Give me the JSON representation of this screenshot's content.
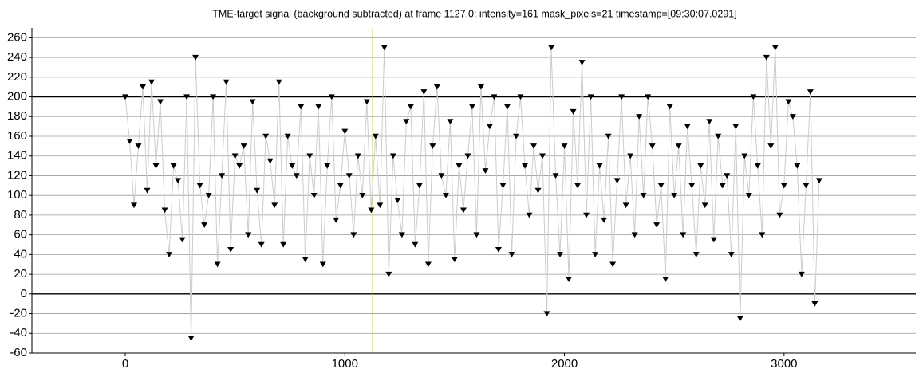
{
  "chart_data": {
    "type": "line",
    "title": "TME-target signal (background subtracted) at frame 1127.0: intensity=161 mask_pixels=21 timestamp=[09:30:07.0291]",
    "x": [
      0,
      20,
      40,
      60,
      80,
      100,
      120,
      140,
      160,
      180,
      200,
      220,
      240,
      260,
      280,
      300,
      320,
      340,
      360,
      380,
      400,
      420,
      440,
      460,
      480,
      500,
      520,
      540,
      560,
      580,
      600,
      620,
      640,
      660,
      680,
      700,
      720,
      740,
      760,
      780,
      800,
      820,
      840,
      860,
      880,
      900,
      920,
      940,
      960,
      980,
      1000,
      1020,
      1040,
      1060,
      1080,
      1100,
      1120,
      1140,
      1160,
      1180,
      1200,
      1220,
      1240,
      1260,
      1280,
      1300,
      1320,
      1340,
      1360,
      1380,
      1400,
      1420,
      1440,
      1460,
      1480,
      1500,
      1520,
      1540,
      1560,
      1580,
      1600,
      1620,
      1640,
      1660,
      1680,
      1700,
      1720,
      1740,
      1760,
      1780,
      1800,
      1820,
      1840,
      1860,
      1880,
      1900,
      1920,
      1940,
      1960,
      1980,
      2000,
      2020,
      2040,
      2060,
      2080,
      2100,
      2120,
      2140,
      2160,
      2180,
      2200,
      2220,
      2240,
      2260,
      2280,
      2300,
      2320,
      2340,
      2360,
      2380,
      2400,
      2420,
      2440,
      2460,
      2480,
      2500,
      2520,
      2540,
      2560,
      2580,
      2600,
      2620,
      2640,
      2660,
      2680,
      2700,
      2720,
      2740,
      2760,
      2780,
      2800,
      2820,
      2840,
      2860,
      2880,
      2900,
      2920,
      2940,
      2960,
      2980,
      3000,
      3020,
      3040,
      3060,
      3080,
      3100,
      3120,
      3140,
      3160
    ],
    "values": [
      200,
      155,
      90,
      150,
      210,
      105,
      215,
      130,
      195,
      85,
      40,
      130,
      115,
      55,
      200,
      -45,
      240,
      110,
      70,
      100,
      200,
      30,
      120,
      215,
      45,
      140,
      130,
      150,
      60,
      195,
      105,
      50,
      160,
      135,
      90,
      215,
      50,
      160,
      130,
      120,
      190,
      35,
      140,
      100,
      190,
      30,
      130,
      200,
      75,
      110,
      165,
      120,
      60,
      140,
      100,
      195,
      85,
      160,
      90,
      250,
      20,
      140,
      95,
      60,
      175,
      190,
      50,
      110,
      205,
      30,
      150,
      210,
      120,
      100,
      175,
      35,
      130,
      85,
      140,
      190,
      60,
      210,
      125,
      170,
      200,
      45,
      110,
      190,
      40,
      160,
      200,
      130,
      80,
      150,
      105,
      140,
      -20,
      250,
      120,
      40,
      150,
      15,
      185,
      110,
      235,
      80,
      200,
      40,
      130,
      75,
      160,
      30,
      115,
      200,
      90,
      140,
      60,
      180,
      100,
      200,
      150,
      70,
      110,
      15,
      190,
      100,
      150,
      60,
      170,
      110,
      40,
      130,
      90,
      175,
      55,
      160,
      110,
      120,
      40,
      170,
      -25,
      140,
      100,
      200,
      130,
      60,
      240,
      150,
      250,
      80,
      110,
      195,
      180,
      130,
      20,
      110,
      205,
      -10,
      115
    ],
    "color": "#000000",
    "line_color": "#cccccc",
    "marker": "triangle_down",
    "xlim": [
      -425,
      3600
    ],
    "ylim": [
      -60,
      270
    ],
    "xticks": [
      0,
      1000,
      2000,
      3000
    ],
    "yticks": [
      -60,
      -40,
      -20,
      0,
      20,
      40,
      60,
      80,
      100,
      120,
      140,
      160,
      180,
      200,
      220,
      240,
      260
    ],
    "grid": true,
    "emphasized_y": [
      0,
      200
    ],
    "cursor_x": 1127,
    "cursor_color": "#b5c832"
  }
}
